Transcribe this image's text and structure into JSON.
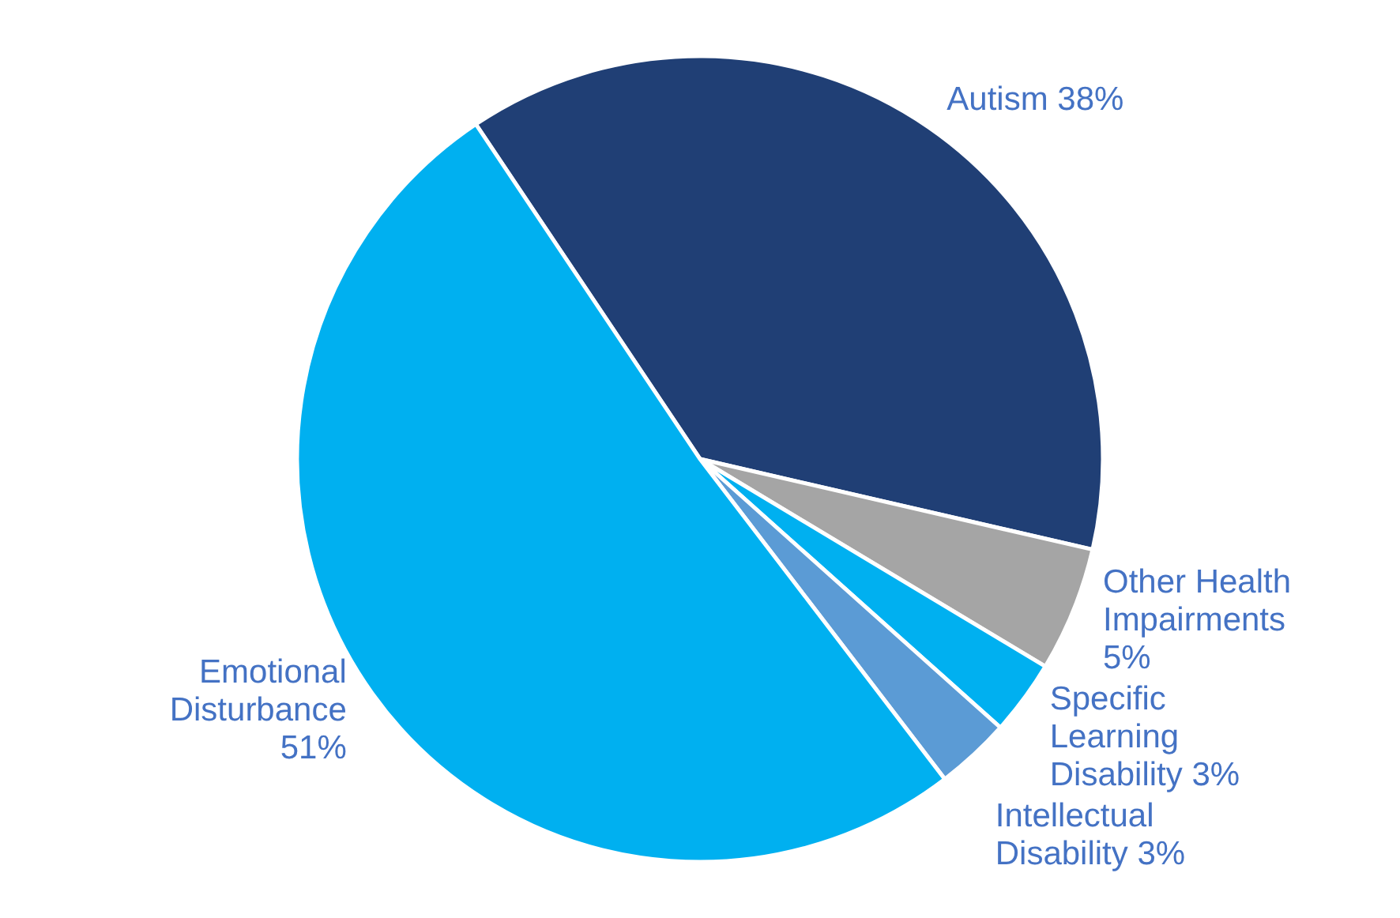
{
  "chart_data": {
    "type": "pie",
    "categories": [
      "Autism",
      "Other Health Impairments",
      "Specific Learning Disability",
      "Intellectual Disability",
      "Emotional Disturbance"
    ],
    "values": [
      38,
      5,
      3,
      3,
      51
    ],
    "value_labels": [
      "38%",
      "5%",
      "3%",
      "3%",
      "51%"
    ],
    "colors": [
      "#203f75",
      "#a5a5a5",
      "#00b0f0",
      "#5b9bd5",
      "#00b0f0"
    ]
  }
}
